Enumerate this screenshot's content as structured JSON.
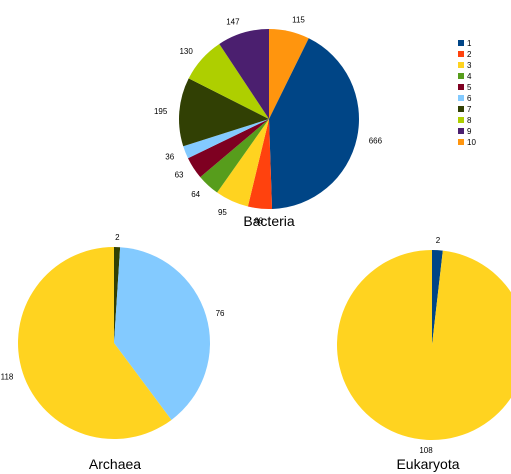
{
  "legend": {
    "entries": [
      "1",
      "2",
      "3",
      "4",
      "5",
      "6",
      "7",
      "8",
      "9",
      "10"
    ],
    "colors": [
      "#004586",
      "#ff420e",
      "#ffd320",
      "#579d1c",
      "#7e0021",
      "#83caff",
      "#314004",
      "#aecf00",
      "#4b1f6f",
      "#ff950e"
    ]
  },
  "chart_data": [
    {
      "type": "pie",
      "title": "Bacteria",
      "categories": [
        "1",
        "2",
        "3",
        "4",
        "5",
        "6",
        "7",
        "8",
        "9",
        "10"
      ],
      "values": [
        666,
        68,
        95,
        64,
        63,
        36,
        195,
        130,
        147,
        115
      ],
      "labels": [
        "666",
        "68",
        "95",
        "64",
        "63",
        "36",
        "195",
        "130",
        "147",
        "115"
      ],
      "start_category": "10",
      "direction": "clockwise",
      "legend": "right"
    },
    {
      "type": "pie",
      "title": "Archaea",
      "categories": [
        "3",
        "7",
        "6"
      ],
      "values": [
        118,
        2,
        76
      ],
      "labels": [
        "118",
        "2",
        "76"
      ],
      "start_category": "7",
      "direction": "clockwise"
    },
    {
      "type": "pie",
      "title": "Eukaryota",
      "categories": [
        "1",
        "3"
      ],
      "values": [
        2,
        108
      ],
      "labels": [
        "2",
        "108"
      ],
      "start_category": "1",
      "direction": "clockwise"
    }
  ]
}
